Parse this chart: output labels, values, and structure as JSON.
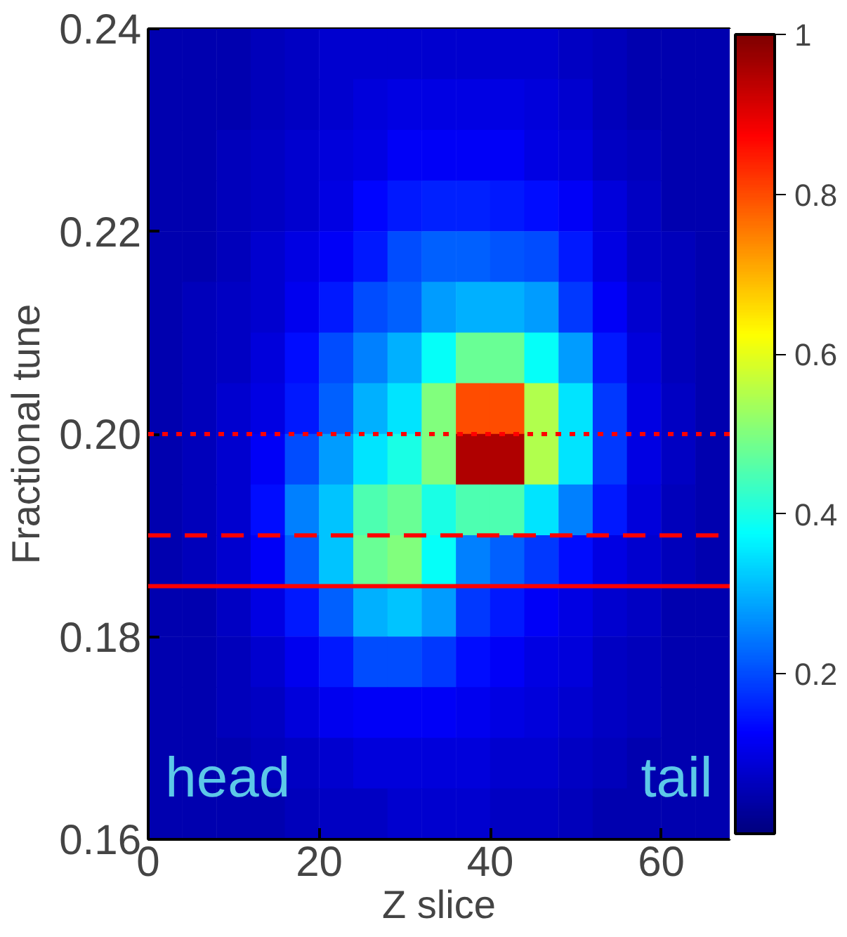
{
  "chart_data": {
    "type": "heatmap",
    "xlabel": "Z slice",
    "ylabel": "Fractional tune",
    "xlim": [
      0,
      68
    ],
    "xticks": [
      0,
      20,
      40,
      60
    ],
    "ylim": [
      0.16,
      0.24
    ],
    "yticks": [
      0.16,
      0.18,
      {
        "value": 0.2,
        "label": "0.20"
      },
      0.22,
      0.24
    ],
    "x": [
      2,
      6,
      10,
      14,
      18,
      22,
      26,
      30,
      34,
      38,
      42,
      46,
      50,
      54,
      58,
      62,
      66
    ],
    "y": [
      0.2375,
      0.2325,
      0.2275,
      0.2225,
      0.2175,
      0.2125,
      0.2075,
      0.2025,
      0.1975,
      0.1925,
      0.1875,
      0.1825,
      0.1775,
      0.1725,
      0.1675,
      0.1625
    ],
    "clim": [
      0,
      1
    ],
    "cticks": [
      0.2,
      0.4,
      0.6,
      0.8,
      1
    ],
    "cells": [
      [
        0.05,
        0.05,
        0.05,
        0.06,
        0.07,
        0.08,
        0.08,
        0.08,
        0.08,
        0.08,
        0.08,
        0.08,
        0.07,
        0.06,
        0.05,
        0.05,
        0.05
      ],
      [
        0.05,
        0.05,
        0.05,
        0.06,
        0.07,
        0.08,
        0.09,
        0.1,
        0.1,
        0.1,
        0.1,
        0.09,
        0.08,
        0.06,
        0.05,
        0.05,
        0.05
      ],
      [
        0.05,
        0.05,
        0.06,
        0.07,
        0.08,
        0.09,
        0.1,
        0.12,
        0.12,
        0.12,
        0.12,
        0.1,
        0.09,
        0.07,
        0.06,
        0.05,
        0.05
      ],
      [
        0.05,
        0.05,
        0.06,
        0.07,
        0.08,
        0.1,
        0.13,
        0.15,
        0.16,
        0.16,
        0.15,
        0.14,
        0.12,
        0.09,
        0.07,
        0.05,
        0.05
      ],
      [
        0.05,
        0.05,
        0.06,
        0.08,
        0.1,
        0.12,
        0.15,
        0.2,
        0.22,
        0.22,
        0.21,
        0.2,
        0.15,
        0.1,
        0.07,
        0.06,
        0.05
      ],
      [
        0.05,
        0.06,
        0.07,
        0.08,
        0.11,
        0.15,
        0.2,
        0.22,
        0.28,
        0.3,
        0.3,
        0.28,
        0.18,
        0.12,
        0.08,
        0.06,
        0.05
      ],
      [
        0.05,
        0.06,
        0.07,
        0.09,
        0.14,
        0.2,
        0.25,
        0.3,
        0.38,
        0.48,
        0.48,
        0.38,
        0.28,
        0.15,
        0.09,
        0.06,
        0.05
      ],
      [
        0.05,
        0.06,
        0.08,
        0.1,
        0.15,
        0.22,
        0.3,
        0.35,
        0.5,
        0.8,
        0.8,
        0.55,
        0.35,
        0.18,
        0.1,
        0.07,
        0.05
      ],
      [
        0.05,
        0.06,
        0.08,
        0.12,
        0.2,
        0.28,
        0.35,
        0.4,
        0.5,
        0.95,
        0.95,
        0.55,
        0.35,
        0.18,
        0.1,
        0.07,
        0.05
      ],
      [
        0.05,
        0.06,
        0.08,
        0.14,
        0.25,
        0.32,
        0.45,
        0.48,
        0.4,
        0.45,
        0.45,
        0.35,
        0.25,
        0.15,
        0.09,
        0.06,
        0.05
      ],
      [
        0.05,
        0.06,
        0.08,
        0.12,
        0.22,
        0.32,
        0.48,
        0.5,
        0.38,
        0.25,
        0.22,
        0.18,
        0.14,
        0.1,
        0.08,
        0.06,
        0.05
      ],
      [
        0.05,
        0.05,
        0.07,
        0.1,
        0.15,
        0.22,
        0.3,
        0.32,
        0.28,
        0.18,
        0.15,
        0.12,
        0.1,
        0.08,
        0.07,
        0.05,
        0.05
      ],
      [
        0.05,
        0.05,
        0.06,
        0.08,
        0.11,
        0.15,
        0.2,
        0.2,
        0.18,
        0.14,
        0.12,
        0.1,
        0.09,
        0.07,
        0.06,
        0.05,
        0.05
      ],
      [
        0.05,
        0.05,
        0.06,
        0.07,
        0.09,
        0.11,
        0.12,
        0.12,
        0.12,
        0.11,
        0.1,
        0.09,
        0.08,
        0.07,
        0.06,
        0.05,
        0.05
      ],
      [
        0.05,
        0.05,
        0.05,
        0.06,
        0.07,
        0.08,
        0.09,
        0.09,
        0.09,
        0.09,
        0.08,
        0.08,
        0.07,
        0.06,
        0.05,
        0.05,
        0.05
      ],
      [
        0.05,
        0.05,
        0.05,
        0.05,
        0.06,
        0.07,
        0.07,
        0.08,
        0.08,
        0.08,
        0.07,
        0.07,
        0.06,
        0.05,
        0.05,
        0.05,
        0.05
      ]
    ],
    "ref_lines": [
      {
        "axis": "y",
        "value": 0.2,
        "color": "#ff0000",
        "line_style": "dotted"
      },
      {
        "axis": "y",
        "value": 0.19,
        "color": "#ff0000",
        "line_style": "dashed"
      },
      {
        "axis": "y",
        "value": 0.185,
        "color": "#ff0000",
        "line_style": "solid"
      }
    ],
    "annotations": [
      "head",
      "tail"
    ],
    "grid": false
  }
}
